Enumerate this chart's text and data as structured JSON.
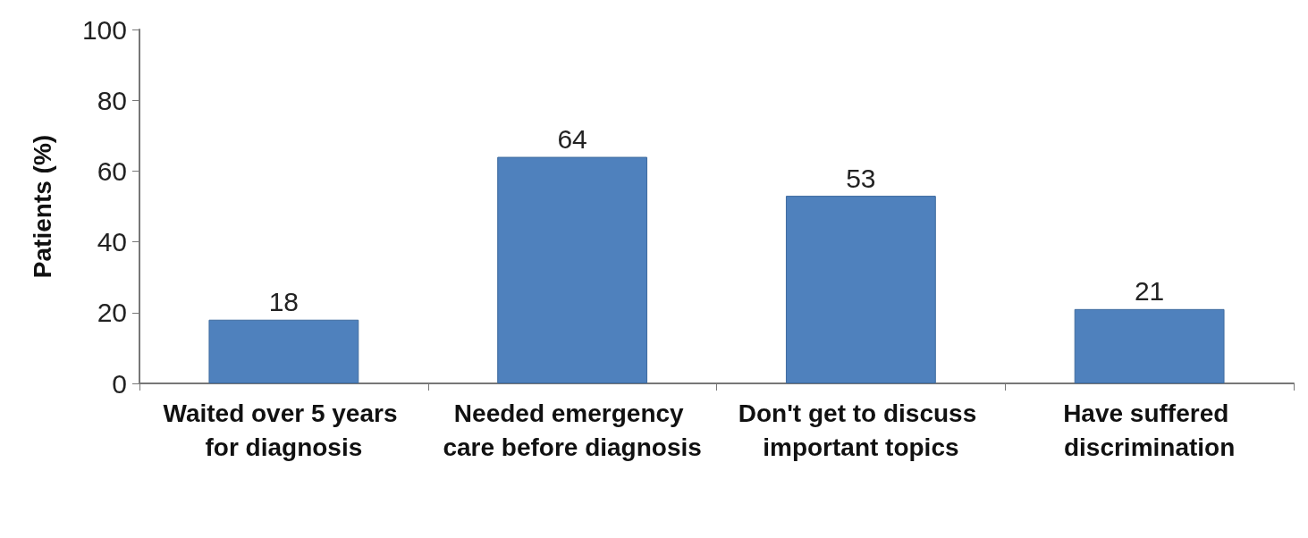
{
  "chart_data": {
    "type": "bar",
    "ylabel": "Patients (%)",
    "categories": [
      "Waited over 5 years for diagnosis",
      "Needed emergency care before diagnosis",
      "Don't get to discuss important topics",
      "Have suffered discrimination"
    ],
    "values": [
      18,
      64,
      53,
      21
    ],
    "color": "#4f81bd",
    "ylim": [
      0,
      100
    ],
    "yticks": [
      0,
      20,
      40,
      60,
      80,
      100
    ],
    "grid": false,
    "data_labels": true
  }
}
